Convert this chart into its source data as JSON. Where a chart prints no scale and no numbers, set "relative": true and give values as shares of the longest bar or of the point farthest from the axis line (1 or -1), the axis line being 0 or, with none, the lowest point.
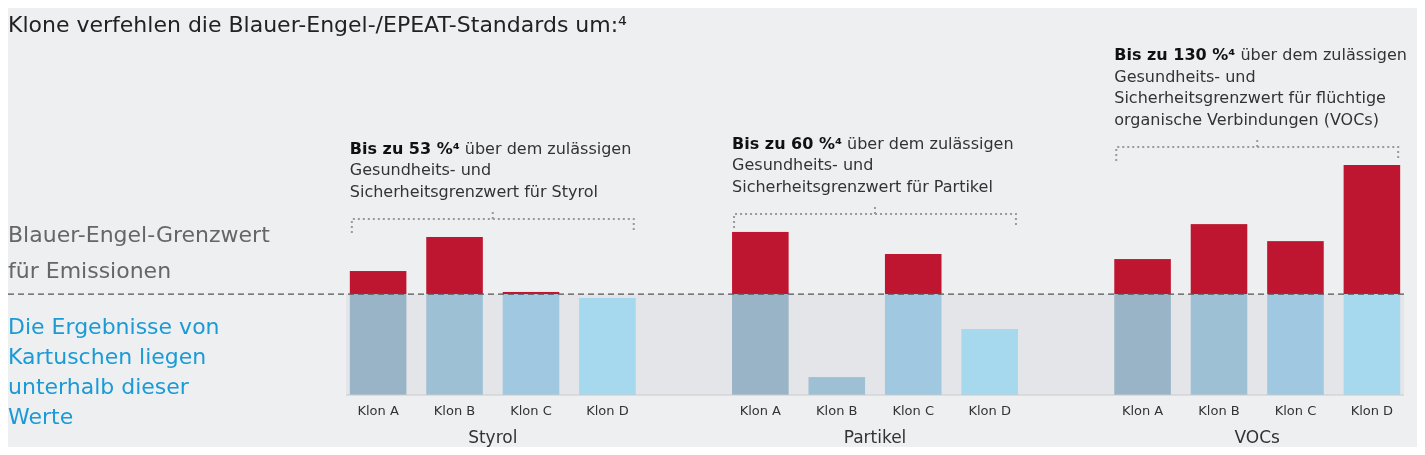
{
  "chart_data": {
    "type": "bar",
    "title": "Klone verfehlen die Blauer-Engel-/EPEAT-Standards um:⁴",
    "categories": [
      "Klon A",
      "Klon B",
      "Klon C",
      "Klon D",
      null,
      "Klon A",
      "Klon B",
      "Klon C",
      "Klon D",
      null,
      "Klon A",
      "Klon B",
      "Klon C",
      "Klon D"
    ],
    "stacked": true,
    "relative": true,
    "series": [
      {
        "colors": [
          "#98b4c6",
          "#9ec0d4",
          "#a0c8e0",
          "#a6d8ee",
          null,
          "#98b4c6",
          "#9ec0d4",
          "#a0c8e0",
          "#a6d8ee",
          null,
          "#98b4c6",
          "#9ec0d4",
          "#a0c8e0",
          "#a6d8ee"
        ],
        "values": [
          0.439,
          0.439,
          0.439,
          0.422,
          null,
          0.439,
          0.078,
          0.439,
          0.287,
          null,
          0.439,
          0.439,
          0.439,
          0.439
        ]
      },
      {
        "color": "#be1630",
        "values": [
          0.1,
          0.248,
          0.009,
          null,
          null,
          0.27,
          null,
          0.174,
          null,
          null,
          0.152,
          0.304,
          0.23,
          0.561
        ]
      }
    ],
    "annotations": [
      "Bis zu 53 %⁴ über dem zulässigen Gesundheits- und Sicherheitsgrenzwert für Styrol",
      "Bis zu 60 %⁴ über dem zulässigen Gesundheits- und Sicherheitsgrenzwert für Partikel",
      "Bis zu 130 %⁴ über dem zulässigen Gesundheits- und Sicherheitsgrenzwert für flüchtige organische Verbindungen (VOCs)",
      "Styrol",
      "Partikel",
      "VOCs",
      "Die Ergebnisse von Kartuschen liegen unterhalb dieser Werte"
    ],
    "ref_lines": [
      {
        "axis": "y",
        "value": 0.439,
        "label": "Blauer-Engel-Grenzwert für Emissionen",
        "color": "#555555",
        "line_style": "dashed"
      }
    ],
    "bands": [
      {
        "axis": "y",
        "from": 0,
        "to": 0.439,
        "color": "#e4e5e8"
      }
    ]
  }
}
